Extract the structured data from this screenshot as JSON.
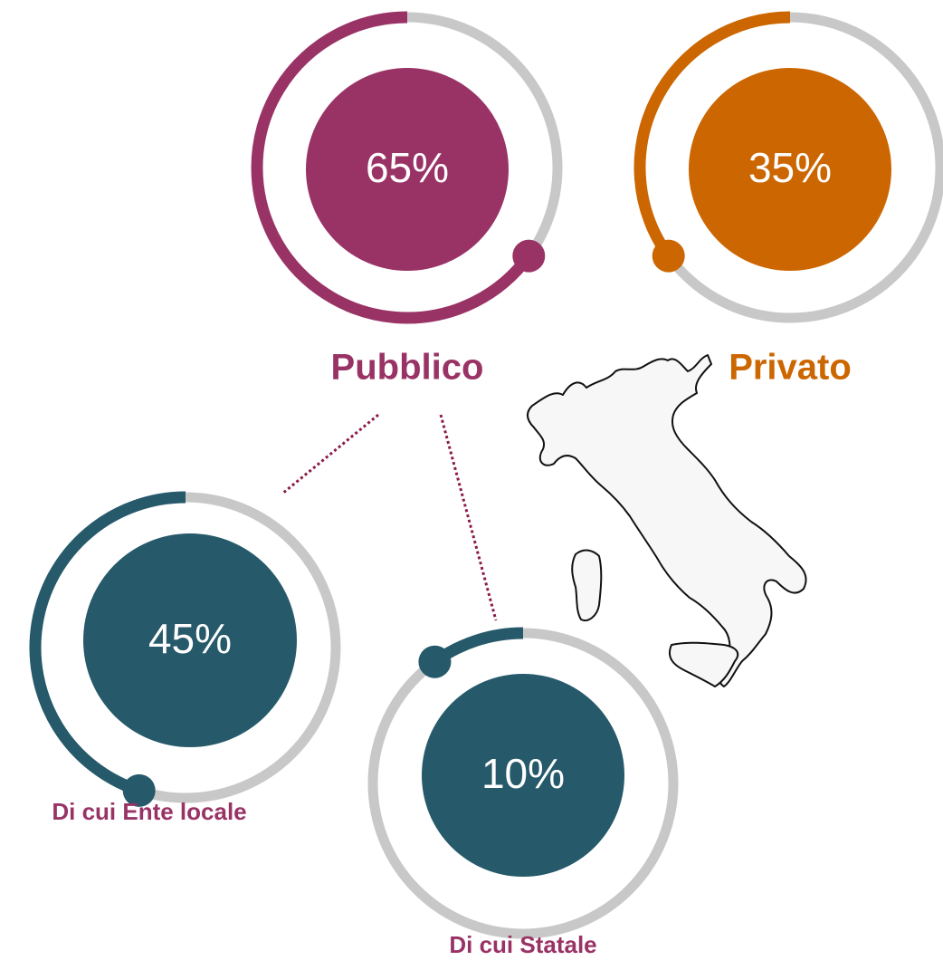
{
  "chart_data": [
    {
      "type": "ring",
      "title": "Pubblico",
      "values": [
        65
      ],
      "value_labels": [
        "65%"
      ],
      "color": "#993366",
      "title_color": "#993366"
    },
    {
      "type": "ring",
      "title": "Privato",
      "values": [
        35
      ],
      "value_labels": [
        "35%"
      ],
      "color": "#cc6600",
      "title_color": "#cc6600"
    },
    {
      "type": "ring",
      "title": "Di cui Ente locale",
      "values": [
        45
      ],
      "value_labels": [
        "45%"
      ],
      "color": "#26596a",
      "title_color": "#993366"
    },
    {
      "type": "ring",
      "title": "Di cui Statale",
      "values": [
        10
      ],
      "value_labels": [
        "10%"
      ],
      "color": "#26596a",
      "title_color": "#993366"
    }
  ]
}
